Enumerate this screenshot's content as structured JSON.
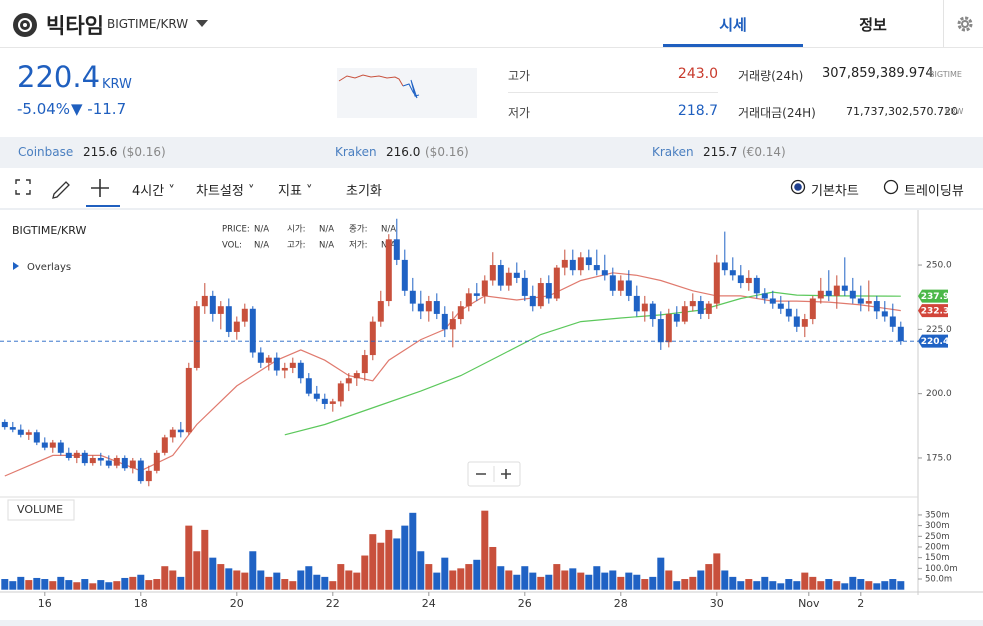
{
  "header": {
    "title": "빅타임",
    "pair": "BIGTIME/KRW",
    "tabs": [
      "시세",
      "정보"
    ]
  },
  "price": {
    "last": "220.4",
    "unit": "KRW",
    "change_pct": "-5.04%",
    "change": "▼ -11.7"
  },
  "stats": [
    {
      "label": "고가",
      "value": "243.0"
    },
    {
      "label": "저가",
      "value": "218.7"
    },
    {
      "label": "거래량(24h)",
      "value": "307,859,389.974",
      "unit": "BIGTIME"
    },
    {
      "label": "거래대금(24H)",
      "value": "71,737,302,570.720",
      "unit": "KRW"
    }
  ],
  "exchanges": [
    {
      "name": "Coinbase",
      "price": "215.6",
      "ref": "($0.16)"
    },
    {
      "name": "Kraken",
      "price": "216.0",
      "ref": "($0.16)"
    },
    {
      "name": "Kraken",
      "price": "215.7",
      "ref": "(€0.14)"
    }
  ],
  "toolbar": {
    "items": [
      "4시간",
      "차트설정",
      "지표",
      "초기화"
    ],
    "modes": [
      "기본차트",
      "트레이딩뷰"
    ]
  },
  "chart_data": {
    "type": "candlestick",
    "pair_label": "BIGTIME/KRW",
    "overlays_label": "Overlays",
    "volume_label": "VOLUME",
    "info": [
      [
        "PRICE:",
        "N/A"
      ],
      [
        "시가:",
        "N/A"
      ],
      [
        "종가:",
        "N/A"
      ],
      [
        "VOL:",
        "N/A"
      ],
      [
        "고가:",
        "N/A"
      ],
      [
        "저가:",
        "N/A"
      ]
    ],
    "up_color": "#c8503c",
    "down_color": "#1f62c4",
    "xlim": [
      -0.6,
      114.15
    ],
    "xticks": [
      {
        "value": 5,
        "label": "16"
      },
      {
        "value": 17,
        "label": "18"
      },
      {
        "value": 29,
        "label": "20"
      },
      {
        "value": 41,
        "label": "22"
      },
      {
        "value": 53,
        "label": "24"
      },
      {
        "value": 65,
        "label": "26"
      },
      {
        "value": 77,
        "label": "28"
      },
      {
        "value": 89,
        "label": "30"
      },
      {
        "value": 100.5,
        "label": "Nov"
      },
      {
        "value": 107,
        "label": "2"
      }
    ],
    "ylim": [
      160.6,
      271.4
    ],
    "yticks": [
      {
        "value": 250,
        "label": "250.0"
      },
      {
        "value": 225,
        "label": "225.0"
      },
      {
        "value": 200,
        "label": "200.0"
      },
      {
        "value": 175,
        "label": "175.0"
      }
    ],
    "vlim": [
      0,
      420
    ],
    "vticks": [
      {
        "value": 350,
        "label": "350m"
      },
      {
        "value": 300,
        "label": "300m"
      },
      {
        "value": 250,
        "label": "250m"
      },
      {
        "value": 200,
        "label": "200m"
      },
      {
        "value": 150,
        "label": "150m"
      },
      {
        "value": 100,
        "label": "100.0m"
      },
      {
        "value": 50,
        "label": "50.0m"
      }
    ],
    "x": [
      0,
      1,
      2,
      3,
      4,
      5,
      6,
      7,
      8,
      9,
      10,
      11,
      12,
      13,
      14,
      15,
      16,
      17,
      18,
      19,
      20,
      21,
      22,
      23,
      24,
      25,
      26,
      27,
      28,
      29,
      30,
      31,
      32,
      33,
      34,
      35,
      36,
      37,
      38,
      39,
      40,
      41,
      42,
      43,
      44,
      45,
      46,
      47,
      48,
      49,
      50,
      51,
      52,
      53,
      54,
      55,
      56,
      57,
      58,
      59,
      60,
      61,
      62,
      63,
      64,
      65,
      66,
      67,
      68,
      69,
      70,
      71,
      72,
      73,
      74,
      75,
      76,
      77,
      78,
      79,
      80,
      81,
      82,
      83,
      84,
      85,
      86,
      87,
      88,
      89,
      90,
      91,
      92,
      93,
      94,
      95,
      96,
      97,
      98,
      99,
      100,
      101,
      102,
      103,
      104,
      105,
      106,
      107,
      108,
      109,
      110,
      111,
      112
    ],
    "open": [
      189,
      187,
      186,
      184,
      185,
      181,
      179,
      181,
      177,
      175,
      177,
      173,
      175,
      174,
      172,
      175,
      171,
      174,
      166,
      170,
      177,
      183,
      186,
      185,
      210,
      234,
      238,
      231,
      234,
      224,
      228,
      233,
      216,
      212,
      214,
      209,
      210,
      212,
      206,
      200,
      198,
      196,
      197,
      204,
      206,
      208,
      215,
      228,
      236,
      260,
      252,
      240,
      235,
      232,
      236,
      231,
      225,
      229,
      234,
      239,
      238,
      244,
      250,
      242,
      247,
      245,
      238,
      234,
      243,
      237,
      249,
      252,
      248,
      253,
      250,
      248,
      246,
      240,
      244,
      238,
      232,
      235,
      229,
      220,
      231,
      228,
      234,
      236,
      231,
      235,
      251,
      248,
      246,
      243,
      245,
      239,
      237,
      235,
      233,
      230,
      226,
      229,
      237,
      240,
      238,
      242,
      240,
      237,
      235,
      236,
      232,
      230,
      226
    ],
    "high": [
      190,
      189,
      188,
      186,
      186,
      183,
      182,
      182,
      179,
      178,
      178,
      176,
      177,
      176,
      176,
      176,
      175,
      175,
      172,
      178,
      184,
      187,
      189,
      212,
      236,
      243,
      240,
      236,
      237,
      230,
      235,
      234,
      218,
      215,
      216,
      212,
      214,
      213,
      208,
      203,
      200,
      198,
      205,
      208,
      209,
      217,
      230,
      240,
      262,
      268,
      256,
      245,
      240,
      238,
      239,
      234,
      232,
      236,
      241,
      243,
      246,
      255,
      252,
      249,
      251,
      248,
      242,
      245,
      246,
      250,
      256,
      256,
      255,
      256,
      256,
      254,
      249,
      246,
      248,
      242,
      238,
      236,
      232,
      233,
      234,
      236,
      239,
      238,
      236,
      254,
      263,
      253,
      250,
      248,
      246,
      241,
      240,
      238,
      236,
      233,
      231,
      238,
      245,
      248,
      246,
      253,
      245,
      242,
      244,
      238,
      236,
      235,
      228
    ],
    "low": [
      186,
      185,
      183,
      182,
      180,
      178,
      177,
      176,
      174,
      173,
      172,
      172,
      172,
      171,
      171,
      170,
      169,
      165,
      164,
      169,
      176,
      181,
      183,
      184,
      209,
      231,
      228,
      225,
      222,
      221,
      226,
      214,
      210,
      209,
      207,
      206,
      208,
      204,
      199,
      197,
      194,
      193,
      195,
      201,
      203,
      205,
      213,
      226,
      234,
      250,
      238,
      232,
      229,
      228,
      229,
      222,
      218,
      227,
      232,
      236,
      235,
      242,
      240,
      240,
      243,
      236,
      232,
      233,
      235,
      236,
      246,
      246,
      246,
      248,
      246,
      244,
      238,
      238,
      236,
      230,
      228,
      226,
      217,
      218,
      226,
      227,
      232,
      229,
      229,
      233,
      246,
      244,
      241,
      240,
      237,
      235,
      233,
      231,
      228,
      224,
      222,
      227,
      235,
      236,
      233,
      238,
      235,
      232,
      232,
      229,
      228,
      224,
      219
    ],
    "close": [
      187,
      186,
      184,
      185,
      181,
      179,
      181,
      177,
      175,
      177,
      173,
      175,
      174,
      172,
      175,
      171,
      174,
      166,
      170,
      177,
      183,
      186,
      185,
      210,
      234,
      238,
      231,
      234,
      224,
      228,
      233,
      216,
      212,
      214,
      209,
      210,
      212,
      206,
      200,
      198,
      196,
      197,
      204,
      206,
      208,
      215,
      228,
      236,
      260,
      252,
      240,
      235,
      232,
      236,
      231,
      225,
      229,
      234,
      239,
      238,
      244,
      250,
      242,
      247,
      245,
      238,
      234,
      243,
      237,
      249,
      252,
      248,
      253,
      250,
      248,
      246,
      240,
      244,
      238,
      232,
      235,
      229,
      220,
      231,
      228,
      234,
      236,
      231,
      235,
      251,
      248,
      246,
      243,
      245,
      239,
      237,
      235,
      233,
      230,
      226,
      229,
      237,
      240,
      238,
      242,
      240,
      237,
      235,
      236,
      232,
      230,
      226,
      220.4
    ],
    "volume": [
      50,
      40,
      60,
      45,
      55,
      50,
      40,
      60,
      45,
      35,
      50,
      30,
      45,
      35,
      40,
      55,
      60,
      70,
      45,
      50,
      110,
      90,
      60,
      300,
      180,
      280,
      150,
      120,
      100,
      90,
      80,
      180,
      90,
      60,
      80,
      50,
      40,
      90,
      110,
      70,
      60,
      40,
      120,
      90,
      80,
      160,
      260,
      220,
      280,
      240,
      300,
      360,
      180,
      120,
      80,
      150,
      90,
      100,
      120,
      140,
      370,
      200,
      110,
      90,
      70,
      110,
      80,
      60,
      70,
      120,
      90,
      100,
      80,
      70,
      110,
      80,
      90,
      60,
      80,
      70,
      50,
      60,
      150,
      90,
      40,
      50,
      60,
      90,
      120,
      170,
      90,
      60,
      40,
      50,
      40,
      60,
      40,
      30,
      50,
      40,
      80,
      60,
      40,
      50,
      40,
      30,
      60,
      50,
      40,
      30,
      40,
      50,
      40
    ],
    "overlays": [
      {
        "color": "#e07a6e",
        "x": [
          0,
          6,
          12,
          17,
          21,
          24,
          29,
          34,
          37,
          40,
          43,
          46,
          48,
          52,
          55,
          57,
          60,
          64,
          68,
          72,
          76,
          79,
          82,
          86,
          89,
          92,
          96,
          99,
          103,
          107,
          112
        ],
        "values": [
          168,
          176,
          176,
          170,
          176,
          188,
          203,
          213,
          217,
          213,
          207,
          205,
          213,
          221,
          225,
          232.5,
          238,
          236.4,
          238,
          244,
          247,
          246,
          244,
          240,
          238,
          238,
          236,
          236,
          235.6,
          234.5,
          232.3
        ]
      },
      {
        "color": "#5cc85c",
        "x": [
          35,
          40,
          47,
          52,
          57,
          62,
          67,
          72,
          77,
          82,
          87,
          92,
          96,
          99,
          104,
          112
        ],
        "values": [
          184,
          188,
          195.6,
          201,
          207,
          215,
          223,
          228,
          229.4,
          230.6,
          232.5,
          237,
          239.5,
          238.3,
          238,
          237.9
        ]
      }
    ],
    "price_tags": [
      {
        "value": 237.9,
        "color": "#4cb848"
      },
      {
        "value": 232.3,
        "color": "#d2453a"
      },
      {
        "value": 220.4,
        "color": "#1f62c4",
        "dashed": true
      }
    ]
  }
}
